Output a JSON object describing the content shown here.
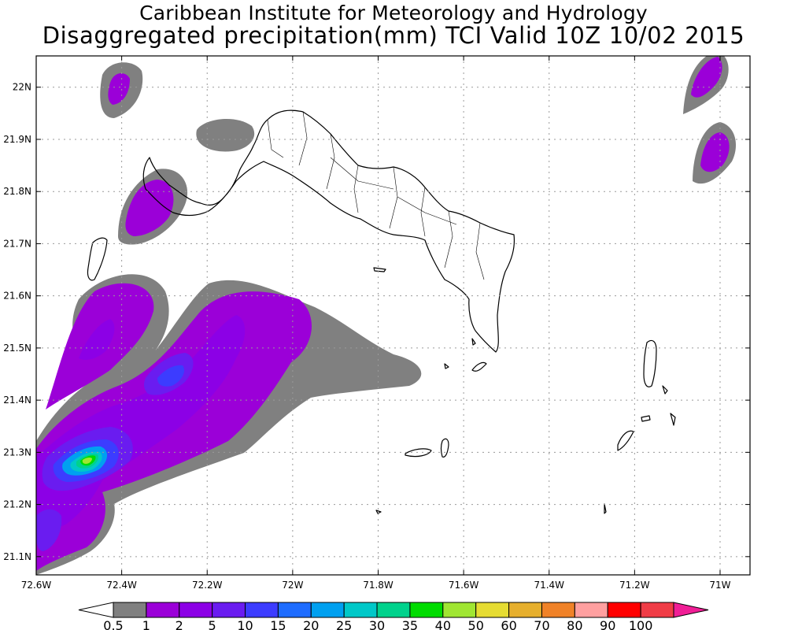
{
  "title": {
    "line1": "Caribbean Institute for Meteorology and Hydrology",
    "line2": "Disaggregated precipitation(mm) TCI Valid 10Z 10/02 2015"
  },
  "map": {
    "lon_range": [
      -72.6,
      -70.93
    ],
    "lat_range": [
      21.065,
      22.06
    ],
    "lon_ticks": [
      {
        "value": -72.6,
        "label": "72.6W"
      },
      {
        "value": -72.4,
        "label": "72.4W"
      },
      {
        "value": -72.2,
        "label": "72.2W"
      },
      {
        "value": -72.0,
        "label": "72W"
      },
      {
        "value": -71.8,
        "label": "71.8W"
      },
      {
        "value": -71.6,
        "label": "71.6W"
      },
      {
        "value": -71.4,
        "label": "71.4W"
      },
      {
        "value": -71.2,
        "label": "71.2W"
      },
      {
        "value": -71.0,
        "label": "71W"
      }
    ],
    "lat_ticks": [
      {
        "value": 22.0,
        "label": "22N"
      },
      {
        "value": 21.9,
        "label": "21.9N"
      },
      {
        "value": 21.8,
        "label": "21.8N"
      },
      {
        "value": 21.7,
        "label": "21.7N"
      },
      {
        "value": 21.6,
        "label": "21.6N"
      },
      {
        "value": 21.5,
        "label": "21.5N"
      },
      {
        "value": 21.4,
        "label": "21.4N"
      },
      {
        "value": 21.3,
        "label": "21.3N"
      },
      {
        "value": 21.2,
        "label": "21.2N"
      },
      {
        "value": 21.1,
        "label": "21.1N"
      }
    ],
    "grid": true,
    "grid_style": "dotted"
  },
  "colorbar": {
    "labels": [
      "0.5",
      "1",
      "2",
      "5",
      "10",
      "15",
      "20",
      "25",
      "30",
      "35",
      "40",
      "50",
      "60",
      "70",
      "80",
      "90",
      "100"
    ],
    "colors": [
      "#808080",
      "#9b00d8",
      "#8c00e6",
      "#6a1cf0",
      "#3c3cff",
      "#1e6cff",
      "#00a0f0",
      "#00c8c8",
      "#00d28c",
      "#00dc00",
      "#a0e632",
      "#e6dc32",
      "#e6af2d",
      "#f08228",
      "#ffa0a0",
      "#ff0000",
      "#f03c46"
    ],
    "low_end_color": "#ffffff",
    "high_end_color": "#f01e96"
  }
}
